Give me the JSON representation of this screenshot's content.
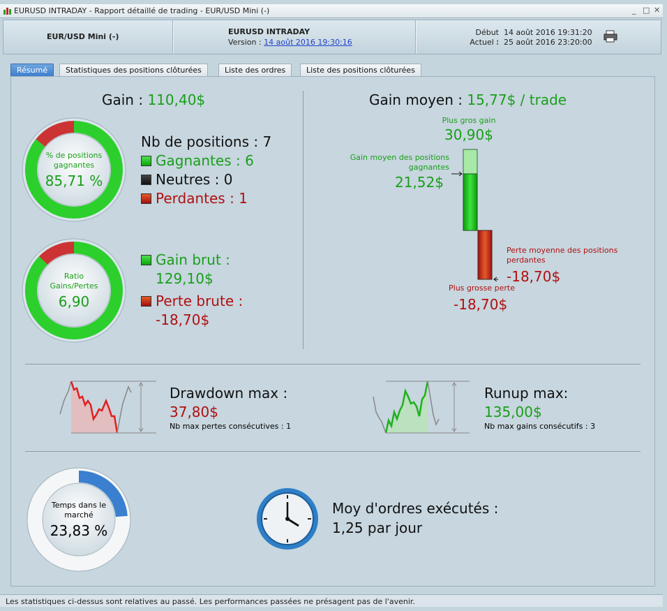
{
  "window": {
    "title": "EURUSD INTRADAY - Rapport détaillé de trading - EUR/USD Mini (-)"
  },
  "header": {
    "instrument": "EUR/USD Mini (-)",
    "strategy": "EURUSD INTRADAY",
    "version_label": "Version :",
    "version_value": "14 août 2016 19:30:16",
    "start_label": "Début :",
    "start_value": "14 août 2016 19:31:20",
    "current_label": "Actuel :",
    "current_value": "25 août 2016 23:20:00"
  },
  "tabs": [
    {
      "label": "Résumé",
      "active": true
    },
    {
      "label": "Statistiques des positions clôturées"
    },
    {
      "label": "Liste des ordres"
    },
    {
      "label": "Liste des positions clôturées"
    }
  ],
  "gain": {
    "label": "Gain :",
    "value": "110,40$"
  },
  "winrate": {
    "label_1": "% de positions",
    "label_2": "gagnantes",
    "value": "85,71 %",
    "fraction": 0.8571
  },
  "positions": {
    "title": "Nb de positions : 7",
    "winners": "Gagnantes : 6",
    "neutral": "Neutres : 0",
    "losers": "Perdantes : 1"
  },
  "ratio": {
    "label_1": "Ratio",
    "label_2": "Gains/Pertes",
    "value": "6,90",
    "fraction": 0.873
  },
  "gross": {
    "gain_label": "Gain brut :",
    "gain_value": "129,10$",
    "loss_label": "Perte brute :",
    "loss_value": "-18,70$"
  },
  "avg_gain": {
    "label": "Gain moyen :",
    "value": "15,77$ / trade",
    "biggest_gain_label": "Plus gros gain",
    "biggest_gain_value": "30,90$",
    "avg_win_label_1": "Gain moyen des positions",
    "avg_win_label_2": "gagnantes",
    "avg_win_value": "21,52$",
    "avg_loss_label_1": "Perte moyenne des positions",
    "avg_loss_label_2": "perdantes",
    "avg_loss_value": "-18,70$",
    "biggest_loss_label": "Plus grosse perte",
    "biggest_loss_value": "-18,70$"
  },
  "drawdown": {
    "label": "Drawdown max :",
    "value": "37,80$",
    "sub": "Nb max pertes consécutives : 1"
  },
  "runup": {
    "label": "Runup max:",
    "value": "135,00$",
    "sub": "Nb max gains consécutifs : 3"
  },
  "market_time": {
    "label_1": "Temps dans le",
    "label_2": "marché",
    "value": "23,83 %",
    "fraction": 0.2383
  },
  "orders": {
    "label": "Moy d'ordres exécutés :",
    "value": "1,25 par jour"
  },
  "footer": {
    "text": "Les statistiques ci-dessus sont relatives au passé. Les performances passées ne présagent pas de l'avenir."
  },
  "colors": {
    "green": "#1a9e1a",
    "red": "#b01010",
    "blue": "#3a7fd0",
    "accent_tab": "#3d7fcc"
  }
}
